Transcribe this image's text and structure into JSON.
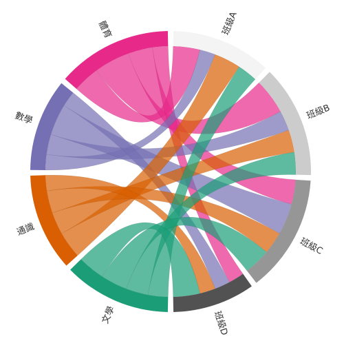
{
  "chart_data": {
    "type": "chord",
    "groups": [
      {
        "name": "班級A",
        "color": "#f4f4f4"
      },
      {
        "name": "班級B",
        "color": "#cccccc"
      },
      {
        "name": "班級C",
        "color": "#969696"
      },
      {
        "name": "班級D",
        "color": "#525252"
      },
      {
        "name": "文學",
        "color": "#1b9e77"
      },
      {
        "name": "通識",
        "color": "#d95f02"
      },
      {
        "name": "數學",
        "color": "#7570b3"
      },
      {
        "name": "體育",
        "color": "#e7298a"
      }
    ],
    "flows": [
      {
        "source": "體育",
        "target": "班級A",
        "value": 12
      },
      {
        "source": "體育",
        "target": "班級B",
        "value": 16
      },
      {
        "source": "體育",
        "target": "班級C",
        "value": 11
      },
      {
        "source": "體育",
        "target": "班級D",
        "value": 7
      },
      {
        "source": "數學",
        "target": "班級A",
        "value": 7
      },
      {
        "source": "數學",
        "target": "班級B",
        "value": 9
      },
      {
        "source": "數學",
        "target": "班級C",
        "value": 14
      },
      {
        "source": "數學",
        "target": "班級D",
        "value": 7
      },
      {
        "source": "通識",
        "target": "班級A",
        "value": 12
      },
      {
        "source": "通識",
        "target": "班級B",
        "value": 10
      },
      {
        "source": "通識",
        "target": "班級C",
        "value": 10
      },
      {
        "source": "通識",
        "target": "班級D",
        "value": 7
      },
      {
        "source": "文學",
        "target": "班級A",
        "value": 9
      },
      {
        "source": "文學",
        "target": "班級B",
        "value": 10
      },
      {
        "source": "文學",
        "target": "班級C",
        "value": 12
      },
      {
        "source": "文學",
        "target": "班級D",
        "value": 12
      }
    ]
  }
}
